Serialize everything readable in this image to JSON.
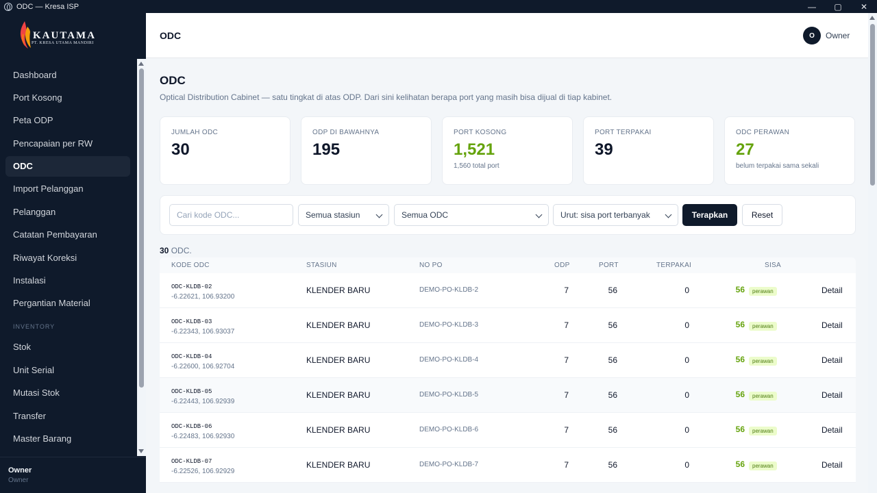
{
  "window": {
    "title": "ODC — Kresa ISP",
    "min": "—",
    "max": "▢",
    "close": "✕"
  },
  "logo": {
    "brand": "KAUTAMA",
    "sub": "PT. KRESA UTAMA MANDIRI"
  },
  "nav": {
    "items": [
      "Dashboard",
      "Port Kosong",
      "Peta ODP",
      "Pencapaian per RW",
      "ODC",
      "Import Pelanggan",
      "Pelanggan",
      "Catatan Pembayaran",
      "Riwayat Koreksi",
      "Instalasi",
      "Pergantian Material"
    ],
    "section": "INVENTORY",
    "inventory": [
      "Stok",
      "Unit Serial",
      "Mutasi Stok",
      "Transfer",
      "Master Barang"
    ]
  },
  "footer": {
    "name": "Owner",
    "role": "Owner"
  },
  "topbar": {
    "title": "ODC",
    "avatar": "O",
    "user": "Owner"
  },
  "page": {
    "title": "ODC",
    "subtitle": "Optical Distribution Cabinet — satu tingkat di atas ODP. Dari sini kelihatan berapa port yang masih bisa dijual di tiap kabinet."
  },
  "stats": [
    {
      "label": "JUMLAH ODC",
      "value": "30",
      "note": ""
    },
    {
      "label": "ODP DI BAWAHNYA",
      "value": "195",
      "note": ""
    },
    {
      "label": "PORT KOSONG",
      "value": "1,521",
      "note": "1,560 total port"
    },
    {
      "label": "PORT TERPAKAI",
      "value": "39",
      "note": ""
    },
    {
      "label": "ODC PERAWAN",
      "value": "27",
      "note": "belum terpakai sama sekali"
    }
  ],
  "filters": {
    "search_placeholder": "Cari kode ODC...",
    "station": "Semua stasiun",
    "odc": "Semua ODC",
    "sort": "Urut: sisa port terbanyak",
    "apply": "Terapkan",
    "reset": "Reset"
  },
  "count": {
    "value": "30",
    "suffix": " ODC."
  },
  "table": {
    "headers": {
      "code": "KODE ODC",
      "station": "STASIUN",
      "po": "NO PO",
      "odp": "ODP",
      "port": "PORT",
      "used": "TERPAKAI",
      "sisa": "SISA"
    },
    "rows": [
      {
        "code": "ODC-KLDB-02",
        "coords": "-6.22621, 106.93200",
        "station": "KLENDER BARU",
        "po": "DEMO-PO-KLDB-2",
        "odp": "7",
        "port": "56",
        "used": "0",
        "sisa": "56",
        "badge": "perawan",
        "action": "Detail"
      },
      {
        "code": "ODC-KLDB-03",
        "coords": "-6.22343, 106.93037",
        "station": "KLENDER BARU",
        "po": "DEMO-PO-KLDB-3",
        "odp": "7",
        "port": "56",
        "used": "0",
        "sisa": "56",
        "badge": "perawan",
        "action": "Detail"
      },
      {
        "code": "ODC-KLDB-04",
        "coords": "-6.22600, 106.92704",
        "station": "KLENDER BARU",
        "po": "DEMO-PO-KLDB-4",
        "odp": "7",
        "port": "56",
        "used": "0",
        "sisa": "56",
        "badge": "perawan",
        "action": "Detail"
      },
      {
        "code": "ODC-KLDB-05",
        "coords": "-6.22443, 106.92939",
        "station": "KLENDER BARU",
        "po": "DEMO-PO-KLDB-5",
        "odp": "7",
        "port": "56",
        "used": "0",
        "sisa": "56",
        "badge": "perawan",
        "action": "Detail"
      },
      {
        "code": "ODC-KLDB-06",
        "coords": "-6.22483, 106.92930",
        "station": "KLENDER BARU",
        "po": "DEMO-PO-KLDB-6",
        "odp": "7",
        "port": "56",
        "used": "0",
        "sisa": "56",
        "badge": "perawan",
        "action": "Detail"
      },
      {
        "code": "ODC-KLDB-07",
        "coords": "-6.22526, 106.92929",
        "station": "KLENDER BARU",
        "po": "DEMO-PO-KLDB-7",
        "odp": "7",
        "port": "56",
        "used": "0",
        "sisa": "56",
        "badge": "perawan",
        "action": "Detail"
      }
    ]
  }
}
